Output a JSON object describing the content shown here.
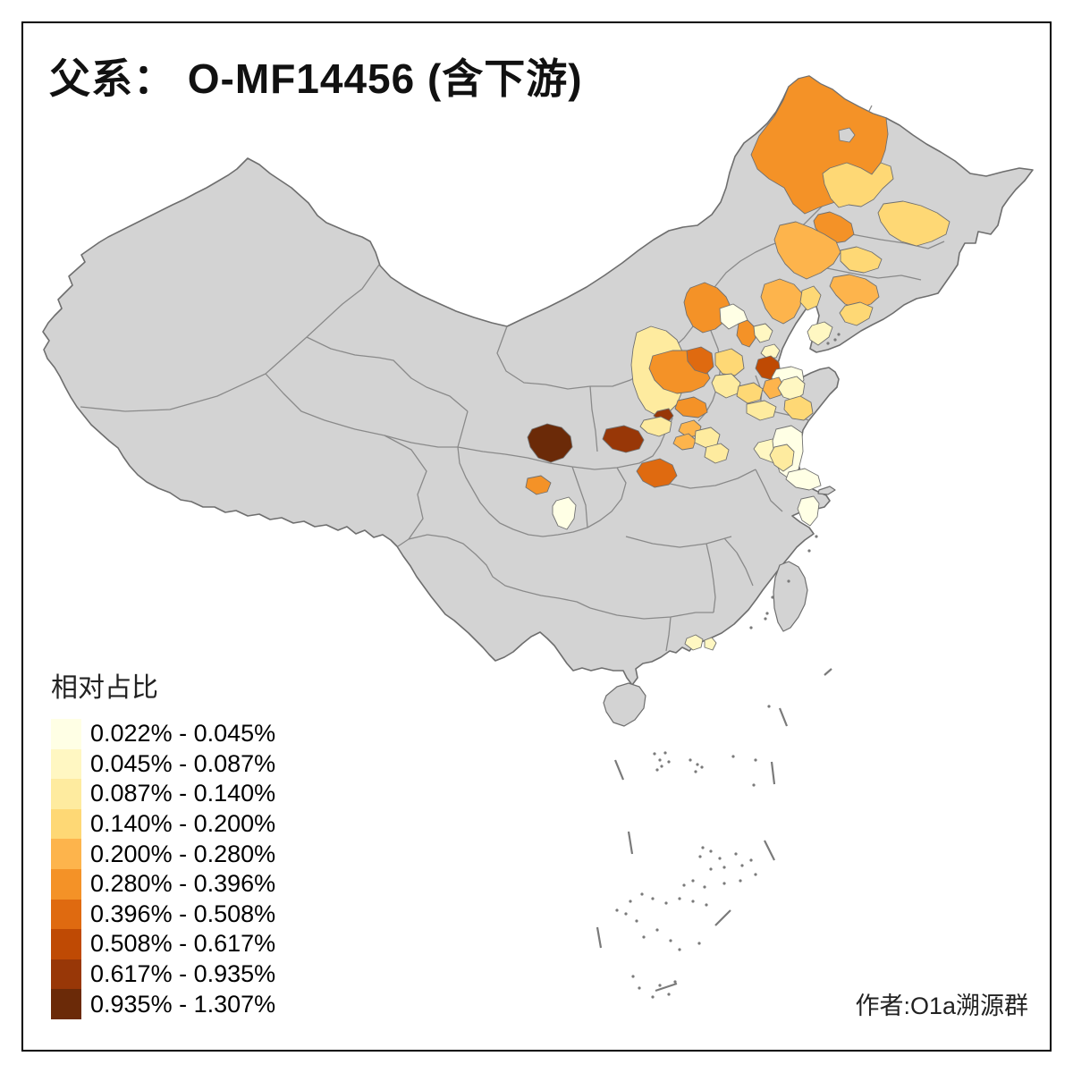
{
  "title": "父系： O-MF14456 (含下游)",
  "credit": "作者:O1a溯源群",
  "legend": {
    "title": "相对占比",
    "bins": [
      {
        "label": "0.022% - 0.045%",
        "color": "#FFFFE5"
      },
      {
        "label": "0.045% - 0.087%",
        "color": "#FFF7C2"
      },
      {
        "label": "0.087% - 0.140%",
        "color": "#FEEB9F"
      },
      {
        "label": "0.140% - 0.200%",
        "color": "#FED875"
      },
      {
        "label": "0.200% - 0.280%",
        "color": "#FDB44C"
      },
      {
        "label": "0.280% - 0.396%",
        "color": "#F49227"
      },
      {
        "label": "0.396% - 0.508%",
        "color": "#DF6A10"
      },
      {
        "label": "0.508% - 0.617%",
        "color": "#BF4A04"
      },
      {
        "label": "0.617% - 0.935%",
        "color": "#983707"
      },
      {
        "label": "0.935% - 1.307%",
        "color": "#6B2A08"
      }
    ]
  },
  "map": {
    "sea_color": "#FFFFFF",
    "land_color": "#D3D3D3",
    "province_border_color": "#8A8A8A",
    "outline_color": "#6E6E6E",
    "frame_color": "#000000",
    "regions": [
      {
        "name": "hulunbuir",
        "bin": 6
      },
      {
        "name": "xingan",
        "bin": 4
      },
      {
        "name": "qiqihar",
        "bin": 4
      },
      {
        "name": "baicheng",
        "bin": 6
      },
      {
        "name": "songyuan",
        "bin": 5
      },
      {
        "name": "changchun",
        "bin": 4
      },
      {
        "name": "liaoning",
        "bin": 5
      },
      {
        "name": "liaodong",
        "bin": 4
      },
      {
        "name": "dalian",
        "bin": 2
      },
      {
        "name": "zhangjiakou",
        "bin": 6
      },
      {
        "name": "chengde",
        "bin": 5
      },
      {
        "name": "chengde-east",
        "bin": 4
      },
      {
        "name": "beijing-northwest",
        "bin": 1
      },
      {
        "name": "beijing",
        "bin": 6
      },
      {
        "name": "tangshan",
        "bin": 2
      },
      {
        "name": "tianjin",
        "bin": 2
      },
      {
        "name": "shanxi-north",
        "bin": 3
      },
      {
        "name": "jinzhong",
        "bin": 6
      },
      {
        "name": "taiyuan",
        "bin": 7
      },
      {
        "name": "shijiazhuang",
        "bin": 4
      },
      {
        "name": "hebei-south",
        "bin": 3
      },
      {
        "name": "jinan",
        "bin": 8
      },
      {
        "name": "dongying",
        "bin": 1
      },
      {
        "name": "taian",
        "bin": 5
      },
      {
        "name": "shandong-mid",
        "bin": 2
      },
      {
        "name": "linyi",
        "bin": 4
      },
      {
        "name": "heze",
        "bin": 4
      },
      {
        "name": "yuncheng",
        "bin": 9
      },
      {
        "name": "linfen",
        "bin": 6
      },
      {
        "name": "luoyang",
        "bin": 5
      },
      {
        "name": "zhengzhou",
        "bin": 5
      },
      {
        "name": "henan-west",
        "bin": 3
      },
      {
        "name": "henan-east",
        "bin": 3
      },
      {
        "name": "zhoukou",
        "bin": 3
      },
      {
        "name": "tianshui",
        "bin": 10
      },
      {
        "name": "baoji",
        "bin": 9
      },
      {
        "name": "hanzhong",
        "bin": 7
      },
      {
        "name": "yaan",
        "bin": 6
      },
      {
        "name": "leshan",
        "bin": 1
      },
      {
        "name": "xuzhou",
        "bin": 3
      },
      {
        "name": "huaian",
        "bin": 2
      },
      {
        "name": "yancheng",
        "bin": 1
      },
      {
        "name": "yangzhou",
        "bin": 3
      },
      {
        "name": "nantong",
        "bin": 1
      },
      {
        "name": "ningbo",
        "bin": 1
      },
      {
        "name": "guangzhou",
        "bin": 2
      },
      {
        "name": "dongguan",
        "bin": 2
      }
    ]
  }
}
